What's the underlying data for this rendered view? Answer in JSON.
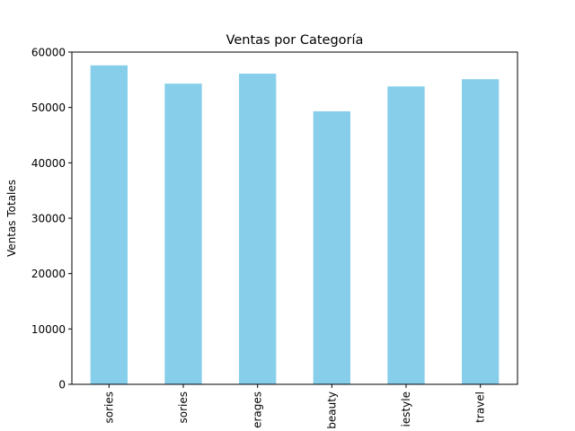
{
  "chart_data": {
    "type": "bar",
    "title": "Ventas por Categoría",
    "xlabel": "",
    "ylabel": "Ventas Totales",
    "categories": [
      "sories",
      "sories",
      "erages",
      "beauty",
      "iestyle",
      "travel"
    ],
    "values": [
      57600,
      54300,
      56100,
      49300,
      53800,
      55100
    ],
    "ylim": [
      0,
      60000
    ],
    "yticks": [
      0,
      10000,
      20000,
      30000,
      40000,
      50000,
      60000
    ],
    "bar_color": "#87CEEB",
    "grid": false,
    "legend": "none"
  }
}
